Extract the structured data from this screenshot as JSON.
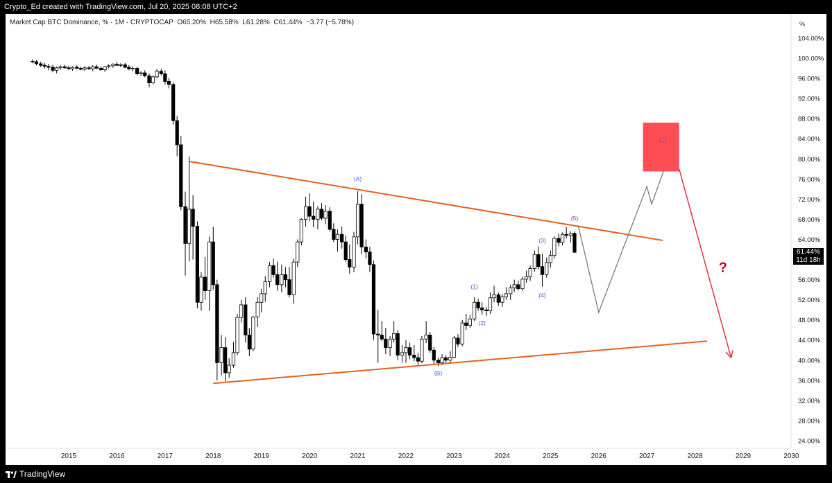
{
  "header": {
    "credit": "Crypto_Ed created with TradingView.com, Jul 20, 2025 08:08 UTC+2"
  },
  "legend": {
    "symbol": "Market Cap BTC Dominance, % · 1M · CRYPTOCAP",
    "open": "O65.20%",
    "high": "H65.58%",
    "low": "L61.28%",
    "close": "C61.44%",
    "change": "−3.77 (−5.78%)"
  },
  "footer": {
    "brand": "TradingView"
  },
  "price_tag": {
    "value": "61.44%",
    "countdown": "11d 18h"
  },
  "colors": {
    "up": "#ffffff",
    "down": "#000000",
    "trendline": "#e8601c",
    "target_box": "#ff4d55",
    "arrow": "#e0323f",
    "question": "#c4002a",
    "wave_label": "#6c3fc5",
    "corrective_label": "#2962ff",
    "projection": "#707070"
  },
  "chart_data": {
    "type": "candlestick",
    "y_unit_label": "%",
    "ylim": [
      22,
      106
    ],
    "y_ticks": [
      "104.00%",
      "100.00%",
      "96.00%",
      "92.00%",
      "88.00%",
      "84.00%",
      "80.00%",
      "76.00%",
      "72.00%",
      "68.00%",
      "64.00%",
      "60.00%",
      "56.00%",
      "52.00%",
      "48.00%",
      "44.00%",
      "40.00%",
      "36.00%",
      "32.00%",
      "28.00%",
      "24.00%"
    ],
    "y_tick_values": [
      104,
      100,
      96,
      92,
      88,
      84,
      80,
      76,
      72,
      68,
      64,
      60,
      56,
      52,
      48,
      44,
      40,
      36,
      32,
      28,
      24
    ],
    "x_ticks": [
      "2015",
      "2016",
      "2017",
      "2018",
      "2019",
      "2020",
      "2021",
      "2022",
      "2023",
      "2024",
      "2025",
      "2026",
      "2027",
      "2028",
      "2029",
      "2030"
    ],
    "x_tick_values": [
      2015,
      2016,
      2017,
      2018,
      2019,
      2020,
      2021,
      2022,
      2023,
      2024,
      2025,
      2026,
      2027,
      2028,
      2029,
      2030
    ],
    "xlim": [
      2013.85,
      2030.12
    ],
    "candles": [
      [
        2014.25,
        99.4,
        99.8,
        99.0,
        99.3
      ],
      [
        2014.33,
        99.3,
        99.6,
        98.6,
        98.9
      ],
      [
        2014.42,
        98.9,
        99.3,
        98.2,
        98.6
      ],
      [
        2014.5,
        98.6,
        99.1,
        97.9,
        98.4
      ],
      [
        2014.58,
        98.4,
        98.9,
        97.6,
        98.2
      ],
      [
        2014.67,
        98.2,
        98.7,
        97.2,
        97.6
      ],
      [
        2014.75,
        97.6,
        98.3,
        97.0,
        98.1
      ],
      [
        2014.83,
        98.1,
        98.6,
        97.7,
        98.3
      ],
      [
        2014.92,
        98.3,
        98.7,
        97.9,
        98.1
      ],
      [
        2015.0,
        98.1,
        98.5,
        97.7,
        97.9
      ],
      [
        2015.08,
        97.9,
        98.4,
        97.5,
        98.2
      ],
      [
        2015.17,
        98.2,
        98.6,
        97.8,
        98.0
      ],
      [
        2015.25,
        98.0,
        98.3,
        97.6,
        97.8
      ],
      [
        2015.33,
        97.8,
        98.4,
        97.5,
        98.1
      ],
      [
        2015.42,
        98.1,
        98.5,
        97.7,
        97.9
      ],
      [
        2015.5,
        97.9,
        98.6,
        97.4,
        98.3
      ],
      [
        2015.58,
        98.3,
        98.7,
        97.8,
        98.0
      ],
      [
        2015.67,
        98.0,
        98.4,
        97.5,
        97.7
      ],
      [
        2015.75,
        97.7,
        98.5,
        97.3,
        98.3
      ],
      [
        2015.83,
        98.3,
        98.8,
        98.0,
        98.5
      ],
      [
        2015.92,
        98.5,
        99.0,
        98.1,
        98.8
      ],
      [
        2016.0,
        98.8,
        99.3,
        98.4,
        98.6
      ],
      [
        2016.08,
        98.6,
        99.0,
        98.2,
        98.7
      ],
      [
        2016.17,
        98.7,
        99.1,
        98.0,
        98.2
      ],
      [
        2016.25,
        98.2,
        98.6,
        97.6,
        97.9
      ],
      [
        2016.33,
        97.9,
        98.4,
        97.4,
        98.0
      ],
      [
        2016.42,
        98.0,
        98.3,
        96.6,
        96.9
      ],
      [
        2016.5,
        96.9,
        97.4,
        96.4,
        97.1
      ],
      [
        2016.58,
        97.1,
        97.6,
        96.2,
        96.5
      ],
      [
        2016.67,
        96.5,
        97.0,
        94.2,
        95.1
      ],
      [
        2016.75,
        95.1,
        96.6,
        94.8,
        96.3
      ],
      [
        2016.83,
        96.3,
        97.8,
        96.0,
        97.4
      ],
      [
        2016.92,
        97.4,
        97.9,
        96.6,
        96.9
      ],
      [
        2017.0,
        96.9,
        97.6,
        94.8,
        95.4
      ],
      [
        2017.08,
        95.4,
        96.1,
        94.0,
        94.8
      ],
      [
        2017.17,
        94.8,
        95.2,
        86.8,
        87.6
      ],
      [
        2017.25,
        87.6,
        88.5,
        80.5,
        82.8
      ],
      [
        2017.33,
        82.8,
        84.6,
        69.8,
        70.5
      ],
      [
        2017.42,
        70.5,
        73.5,
        56.8,
        63.2
      ],
      [
        2017.5,
        63.2,
        80.5,
        59.6,
        70.0
      ],
      [
        2017.58,
        70.0,
        72.8,
        60.0,
        66.6
      ],
      [
        2017.67,
        66.6,
        67.6,
        50.3,
        51.5
      ],
      [
        2017.75,
        51.5,
        57.5,
        49.8,
        56.5
      ],
      [
        2017.83,
        56.5,
        60.5,
        52.0,
        53.8
      ],
      [
        2017.92,
        53.8,
        64.6,
        49.8,
        63.5
      ],
      [
        2018.0,
        63.5,
        66.5,
        54.0,
        55.0
      ],
      [
        2018.08,
        55.0,
        56.0,
        36.0,
        39.5
      ],
      [
        2018.17,
        39.5,
        45.0,
        37.0,
        42.5
      ],
      [
        2018.25,
        42.5,
        44.6,
        35.8,
        37.5
      ],
      [
        2018.33,
        37.5,
        40.4,
        36.5,
        39.0
      ],
      [
        2018.42,
        39.0,
        43.6,
        38.5,
        41.5
      ],
      [
        2018.5,
        41.5,
        49.2,
        41.0,
        48.5
      ],
      [
        2018.58,
        48.5,
        52.0,
        47.5,
        51.0
      ],
      [
        2018.67,
        51.0,
        52.5,
        43.5,
        45.0
      ],
      [
        2018.75,
        45.0,
        46.4,
        40.8,
        42.2
      ],
      [
        2018.83,
        42.2,
        48.8,
        41.8,
        48.6
      ],
      [
        2018.92,
        48.6,
        52.5,
        46.6,
        51.5
      ],
      [
        2019.0,
        51.5,
        54.2,
        49.5,
        53.2
      ],
      [
        2019.08,
        53.2,
        56.7,
        51.6,
        55.6
      ],
      [
        2019.17,
        55.6,
        59.5,
        54.5,
        58.8
      ],
      [
        2019.25,
        58.8,
        60.2,
        56.4,
        57.0
      ],
      [
        2019.33,
        57.0,
        59.6,
        53.8,
        55.0
      ],
      [
        2019.42,
        55.0,
        59.0,
        53.5,
        57.0
      ],
      [
        2019.5,
        57.0,
        58.5,
        54.5,
        56.0
      ],
      [
        2019.58,
        56.0,
        58.5,
        52.5,
        53.0
      ],
      [
        2019.67,
        53.0,
        60.2,
        51.2,
        59.5
      ],
      [
        2019.75,
        59.5,
        64.0,
        58.5,
        63.5
      ],
      [
        2019.83,
        63.5,
        68.2,
        62.8,
        68.0
      ],
      [
        2019.92,
        68.0,
        72.5,
        66.5,
        70.5
      ],
      [
        2020.0,
        70.5,
        73.2,
        67.6,
        68.6
      ],
      [
        2020.08,
        68.6,
        71.5,
        66.4,
        68.0
      ],
      [
        2020.17,
        68.0,
        70.6,
        66.0,
        70.0
      ],
      [
        2020.25,
        70.0,
        71.2,
        67.8,
        68.2
      ],
      [
        2020.33,
        68.2,
        70.8,
        67.0,
        69.6
      ],
      [
        2020.42,
        69.6,
        70.4,
        65.6,
        66.0
      ],
      [
        2020.5,
        66.0,
        67.2,
        63.5,
        64.0
      ],
      [
        2020.58,
        64.0,
        66.0,
        61.6,
        65.0
      ],
      [
        2020.67,
        65.0,
        66.6,
        62.2,
        63.5
      ],
      [
        2020.75,
        63.5,
        64.8,
        59.5,
        60.0
      ],
      [
        2020.83,
        60.0,
        63.0,
        57.2,
        58.5
      ],
      [
        2020.92,
        58.5,
        65.5,
        57.5,
        64.5
      ],
      [
        2021.0,
        64.5,
        73.6,
        63.0,
        71.0
      ],
      [
        2021.08,
        71.0,
        73.0,
        61.0,
        62.5
      ],
      [
        2021.17,
        62.5,
        64.0,
        60.2,
        61.5
      ],
      [
        2021.25,
        61.5,
        62.5,
        57.5,
        59.0
      ],
      [
        2021.33,
        59.0,
        59.8,
        44.0,
        45.2
      ],
      [
        2021.42,
        45.2,
        50.0,
        39.5,
        45.0
      ],
      [
        2021.5,
        45.0,
        47.8,
        43.8,
        44.2
      ],
      [
        2021.58,
        44.2,
        46.4,
        41.2,
        42.5
      ],
      [
        2021.67,
        42.5,
        44.8,
        40.8,
        44.2
      ],
      [
        2021.75,
        44.2,
        47.8,
        43.5,
        45.3
      ],
      [
        2021.83,
        45.3,
        46.0,
        40.0,
        41.0
      ],
      [
        2021.92,
        41.0,
        43.0,
        39.6,
        41.5
      ],
      [
        2022.0,
        41.5,
        44.0,
        39.5,
        42.5
      ],
      [
        2022.08,
        42.5,
        43.5,
        40.2,
        41.0
      ],
      [
        2022.17,
        41.0,
        43.0,
        39.8,
        40.5
      ],
      [
        2022.25,
        40.5,
        41.5,
        39.0,
        39.8
      ],
      [
        2022.33,
        39.8,
        44.8,
        39.4,
        44.2
      ],
      [
        2022.42,
        44.2,
        47.8,
        43.4,
        45.0
      ],
      [
        2022.5,
        45.0,
        45.6,
        41.5,
        42.0
      ],
      [
        2022.58,
        42.0,
        42.6,
        39.2,
        40.0
      ],
      [
        2022.67,
        40.0,
        40.5,
        38.8,
        39.5
      ],
      [
        2022.75,
        39.5,
        41.2,
        39.0,
        40.5
      ],
      [
        2022.83,
        40.5,
        41.0,
        39.3,
        40.0
      ],
      [
        2022.92,
        40.0,
        41.8,
        39.5,
        40.6
      ],
      [
        2023.0,
        40.6,
        44.8,
        40.4,
        44.4
      ],
      [
        2023.08,
        44.4,
        45.2,
        42.6,
        43.2
      ],
      [
        2023.17,
        43.2,
        48.0,
        42.8,
        47.4
      ],
      [
        2023.25,
        47.4,
        49.2,
        46.0,
        46.9
      ],
      [
        2023.33,
        46.9,
        49.0,
        46.4,
        48.2
      ],
      [
        2023.42,
        48.2,
        52.5,
        47.8,
        51.5
      ],
      [
        2023.5,
        51.5,
        52.2,
        49.8,
        50.4
      ],
      [
        2023.58,
        50.4,
        51.5,
        49.0,
        50.0
      ],
      [
        2023.67,
        50.0,
        50.6,
        48.8,
        49.8
      ],
      [
        2023.75,
        49.8,
        53.5,
        49.2,
        52.4
      ],
      [
        2023.83,
        52.4,
        54.8,
        51.5,
        53.0
      ],
      [
        2023.92,
        53.0,
        53.5,
        50.8,
        51.5
      ],
      [
        2024.0,
        51.5,
        53.2,
        50.6,
        52.6
      ],
      [
        2024.08,
        52.6,
        54.5,
        52.0,
        53.2
      ],
      [
        2024.17,
        53.2,
        55.0,
        52.0,
        54.4
      ],
      [
        2024.25,
        54.4,
        56.0,
        53.6,
        55.0
      ],
      [
        2024.33,
        55.0,
        55.8,
        53.8,
        54.2
      ],
      [
        2024.42,
        54.2,
        56.6,
        53.8,
        56.1
      ],
      [
        2024.5,
        56.1,
        57.8,
        55.4,
        56.6
      ],
      [
        2024.58,
        56.6,
        58.8,
        55.8,
        58.2
      ],
      [
        2024.67,
        58.2,
        61.8,
        57.6,
        61.0
      ],
      [
        2024.75,
        61.0,
        62.6,
        58.0,
        58.6
      ],
      [
        2024.83,
        58.6,
        61.2,
        54.6,
        57.0
      ],
      [
        2024.92,
        57.0,
        60.4,
        56.4,
        59.4
      ],
      [
        2025.0,
        59.4,
        61.8,
        58.4,
        60.8
      ],
      [
        2025.08,
        60.8,
        64.6,
        60.2,
        64.2
      ],
      [
        2025.17,
        64.2,
        65.2,
        62.6,
        63.4
      ],
      [
        2025.25,
        63.4,
        65.4,
        62.8,
        65.0
      ],
      [
        2025.33,
        65.0,
        66.4,
        64.2,
        64.8
      ],
      [
        2025.42,
        64.8,
        65.6,
        63.4,
        65.2
      ],
      [
        2025.5,
        65.2,
        65.58,
        61.28,
        61.44
      ]
    ],
    "trendlines": [
      {
        "from": [
          2017.5,
          79.5
        ],
        "to": [
          2027.33,
          63.8
        ]
      },
      {
        "from": [
          2018.0,
          35.4
        ],
        "to": [
          2028.25,
          43.8
        ]
      }
    ],
    "projection_path": [
      [
        2025.58,
        66.6
      ],
      [
        2026.0,
        49.5
      ],
      [
        2027.0,
        74.5
      ],
      [
        2027.1,
        71.0
      ],
      [
        2027.42,
        79.5
      ]
    ],
    "target_zone": {
      "x": [
        2026.92,
        2027.67
      ],
      "y": [
        77.5,
        87.2
      ],
      "label": "(C)"
    },
    "down_arrow": {
      "from": [
        2027.67,
        78.0
      ],
      "to": [
        2028.75,
        40.5
      ]
    },
    "question_mark": {
      "text": "?",
      "at": [
        2028.58,
        57.5
      ]
    },
    "wave_labels": [
      {
        "text": "(A)",
        "at": [
          2021.0,
          75.6
        ],
        "kind": "corrective"
      },
      {
        "text": "(B)",
        "at": [
          2022.67,
          37.0
        ],
        "kind": "corrective"
      },
      {
        "text": "(1)",
        "at": [
          2023.42,
          54.2
        ],
        "kind": "impulse"
      },
      {
        "text": "(2)",
        "at": [
          2023.58,
          47.0
        ],
        "kind": "impulse"
      },
      {
        "text": "(3)",
        "at": [
          2024.83,
          63.4
        ],
        "kind": "impulse"
      },
      {
        "text": "(4)",
        "at": [
          2024.83,
          52.5
        ],
        "kind": "impulse"
      },
      {
        "text": "(5)",
        "at": [
          2025.5,
          67.8
        ],
        "kind": "impulse"
      }
    ]
  }
}
